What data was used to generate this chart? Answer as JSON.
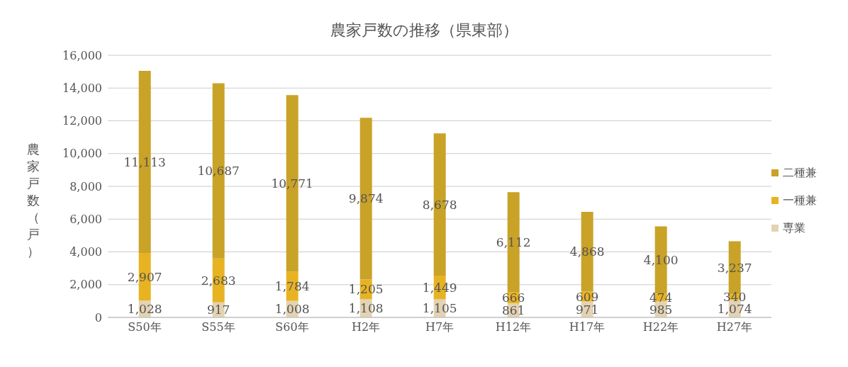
{
  "chart_data": {
    "type": "bar",
    "title": "農家戸数の推移（県東部）",
    "ylabel": "農家戸数（戸）",
    "stacked": true,
    "categories": [
      "S50年",
      "S55年",
      "S60年",
      "H2年",
      "H7年",
      "H12年",
      "H17年",
      "H22年",
      "H27年"
    ],
    "series": [
      {
        "name": "専業",
        "color": "#e3d3b3",
        "values": [
          1028,
          917,
          1008,
          1108,
          1105,
          861,
          971,
          985,
          1074
        ],
        "value_labels": [
          "1,028",
          "917",
          "1,008",
          "1,108",
          "1,105",
          "861",
          "971",
          "985",
          "1,074"
        ]
      },
      {
        "name": "一種兼",
        "color": "#e8b322",
        "values": [
          2907,
          2683,
          1784,
          1205,
          1449,
          666,
          609,
          474,
          340
        ],
        "value_labels": [
          "2,907",
          "2,683",
          "1,784",
          "1,205",
          "1,449",
          "666",
          "609",
          "474",
          "340"
        ]
      },
      {
        "name": "二種兼",
        "color": "#c9a228",
        "values": [
          11113,
          10687,
          10771,
          9874,
          8678,
          6112,
          4868,
          4100,
          3237
        ],
        "value_labels": [
          "11,113",
          "10,687",
          "10,771",
          "9,874",
          "8,678",
          "6,112",
          "4,868",
          "4,100",
          "3,237"
        ]
      }
    ],
    "ylim": [
      0,
      16000
    ],
    "yticks": [
      0,
      {
        "value": 2000,
        "label": "2,000"
      },
      {
        "value": 4000,
        "label": "4,000"
      },
      {
        "value": 6000,
        "label": "6,000"
      },
      {
        "value": 8000,
        "label": "8,000"
      },
      {
        "value": 10000,
        "label": "10,000"
      },
      {
        "value": 12000,
        "label": "12,000"
      },
      {
        "value": 14000,
        "label": "14,000"
      },
      {
        "value": 16000,
        "label": "16,000"
      }
    ],
    "grid": "y",
    "legend": "right"
  }
}
